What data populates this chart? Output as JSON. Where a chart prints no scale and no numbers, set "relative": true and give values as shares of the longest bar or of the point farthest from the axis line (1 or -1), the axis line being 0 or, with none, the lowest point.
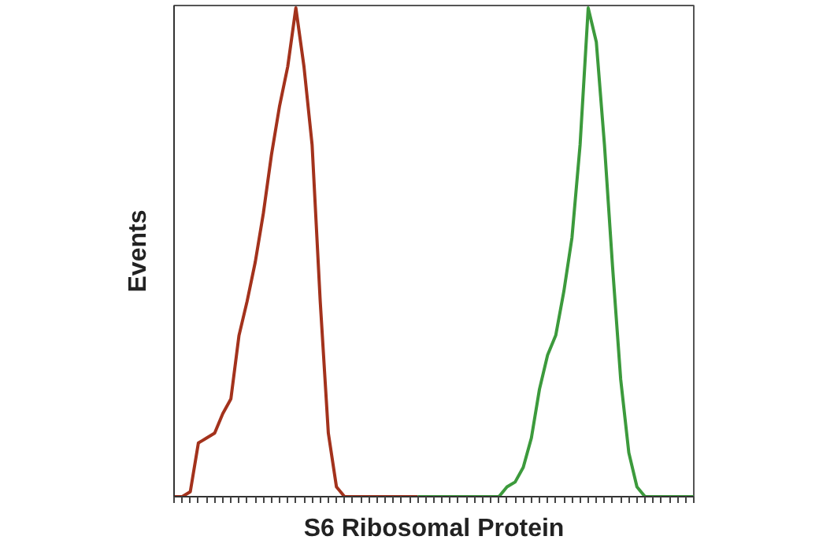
{
  "chart_data": {
    "type": "line",
    "relative": true,
    "xlabel": "S6 Ribosomal Protein",
    "ylabel": "Events",
    "grid": false,
    "marker": "none",
    "line_style": "solid",
    "categories": [
      null,
      null,
      null,
      null,
      null,
      null,
      null,
      null,
      null,
      null,
      null,
      null,
      null,
      null,
      null,
      null,
      null,
      null,
      null,
      null,
      null,
      null,
      null,
      null,
      null,
      null,
      null,
      null,
      null,
      null,
      null,
      null,
      null,
      null,
      null,
      null,
      null,
      null,
      null,
      null,
      null,
      null,
      null,
      null,
      null,
      null,
      null,
      null,
      null,
      null,
      null,
      null,
      null,
      null,
      null,
      null,
      null,
      null,
      null,
      null,
      null,
      null,
      null,
      null,
      null
    ],
    "series": [
      {
        "color": "#a3321c",
        "values": [
          0,
          0,
          0.01,
          0.11,
          0.12,
          0.13,
          0.17,
          0.2,
          0.33,
          0.4,
          0.48,
          0.58,
          0.7,
          0.8,
          0.88,
          1.0,
          0.88,
          0.72,
          0.4,
          0.13,
          0.02,
          0,
          0,
          0,
          0,
          0,
          0,
          0,
          0,
          0,
          0,
          null,
          null,
          null,
          null,
          null,
          null,
          null,
          null,
          null,
          null,
          null,
          null,
          null,
          null,
          null,
          null,
          null,
          null,
          null,
          null,
          null,
          null,
          null,
          null,
          null,
          null,
          null,
          null,
          null,
          null,
          null,
          null,
          null,
          null
        ]
      },
      {
        "color": "#3c9a3c",
        "values": [
          null,
          null,
          null,
          null,
          null,
          null,
          null,
          null,
          null,
          null,
          null,
          null,
          null,
          null,
          null,
          null,
          null,
          null,
          null,
          null,
          null,
          null,
          null,
          null,
          null,
          null,
          null,
          null,
          null,
          null,
          0,
          0,
          0,
          0,
          0,
          0,
          0,
          0,
          0,
          0,
          0,
          0.02,
          0.03,
          0.06,
          0.12,
          0.22,
          0.29,
          0.33,
          0.42,
          0.53,
          0.72,
          1.0,
          0.93,
          0.72,
          0.47,
          0.24,
          0.09,
          0.02,
          0,
          0,
          0,
          0,
          0,
          0,
          0
        ]
      }
    ]
  }
}
